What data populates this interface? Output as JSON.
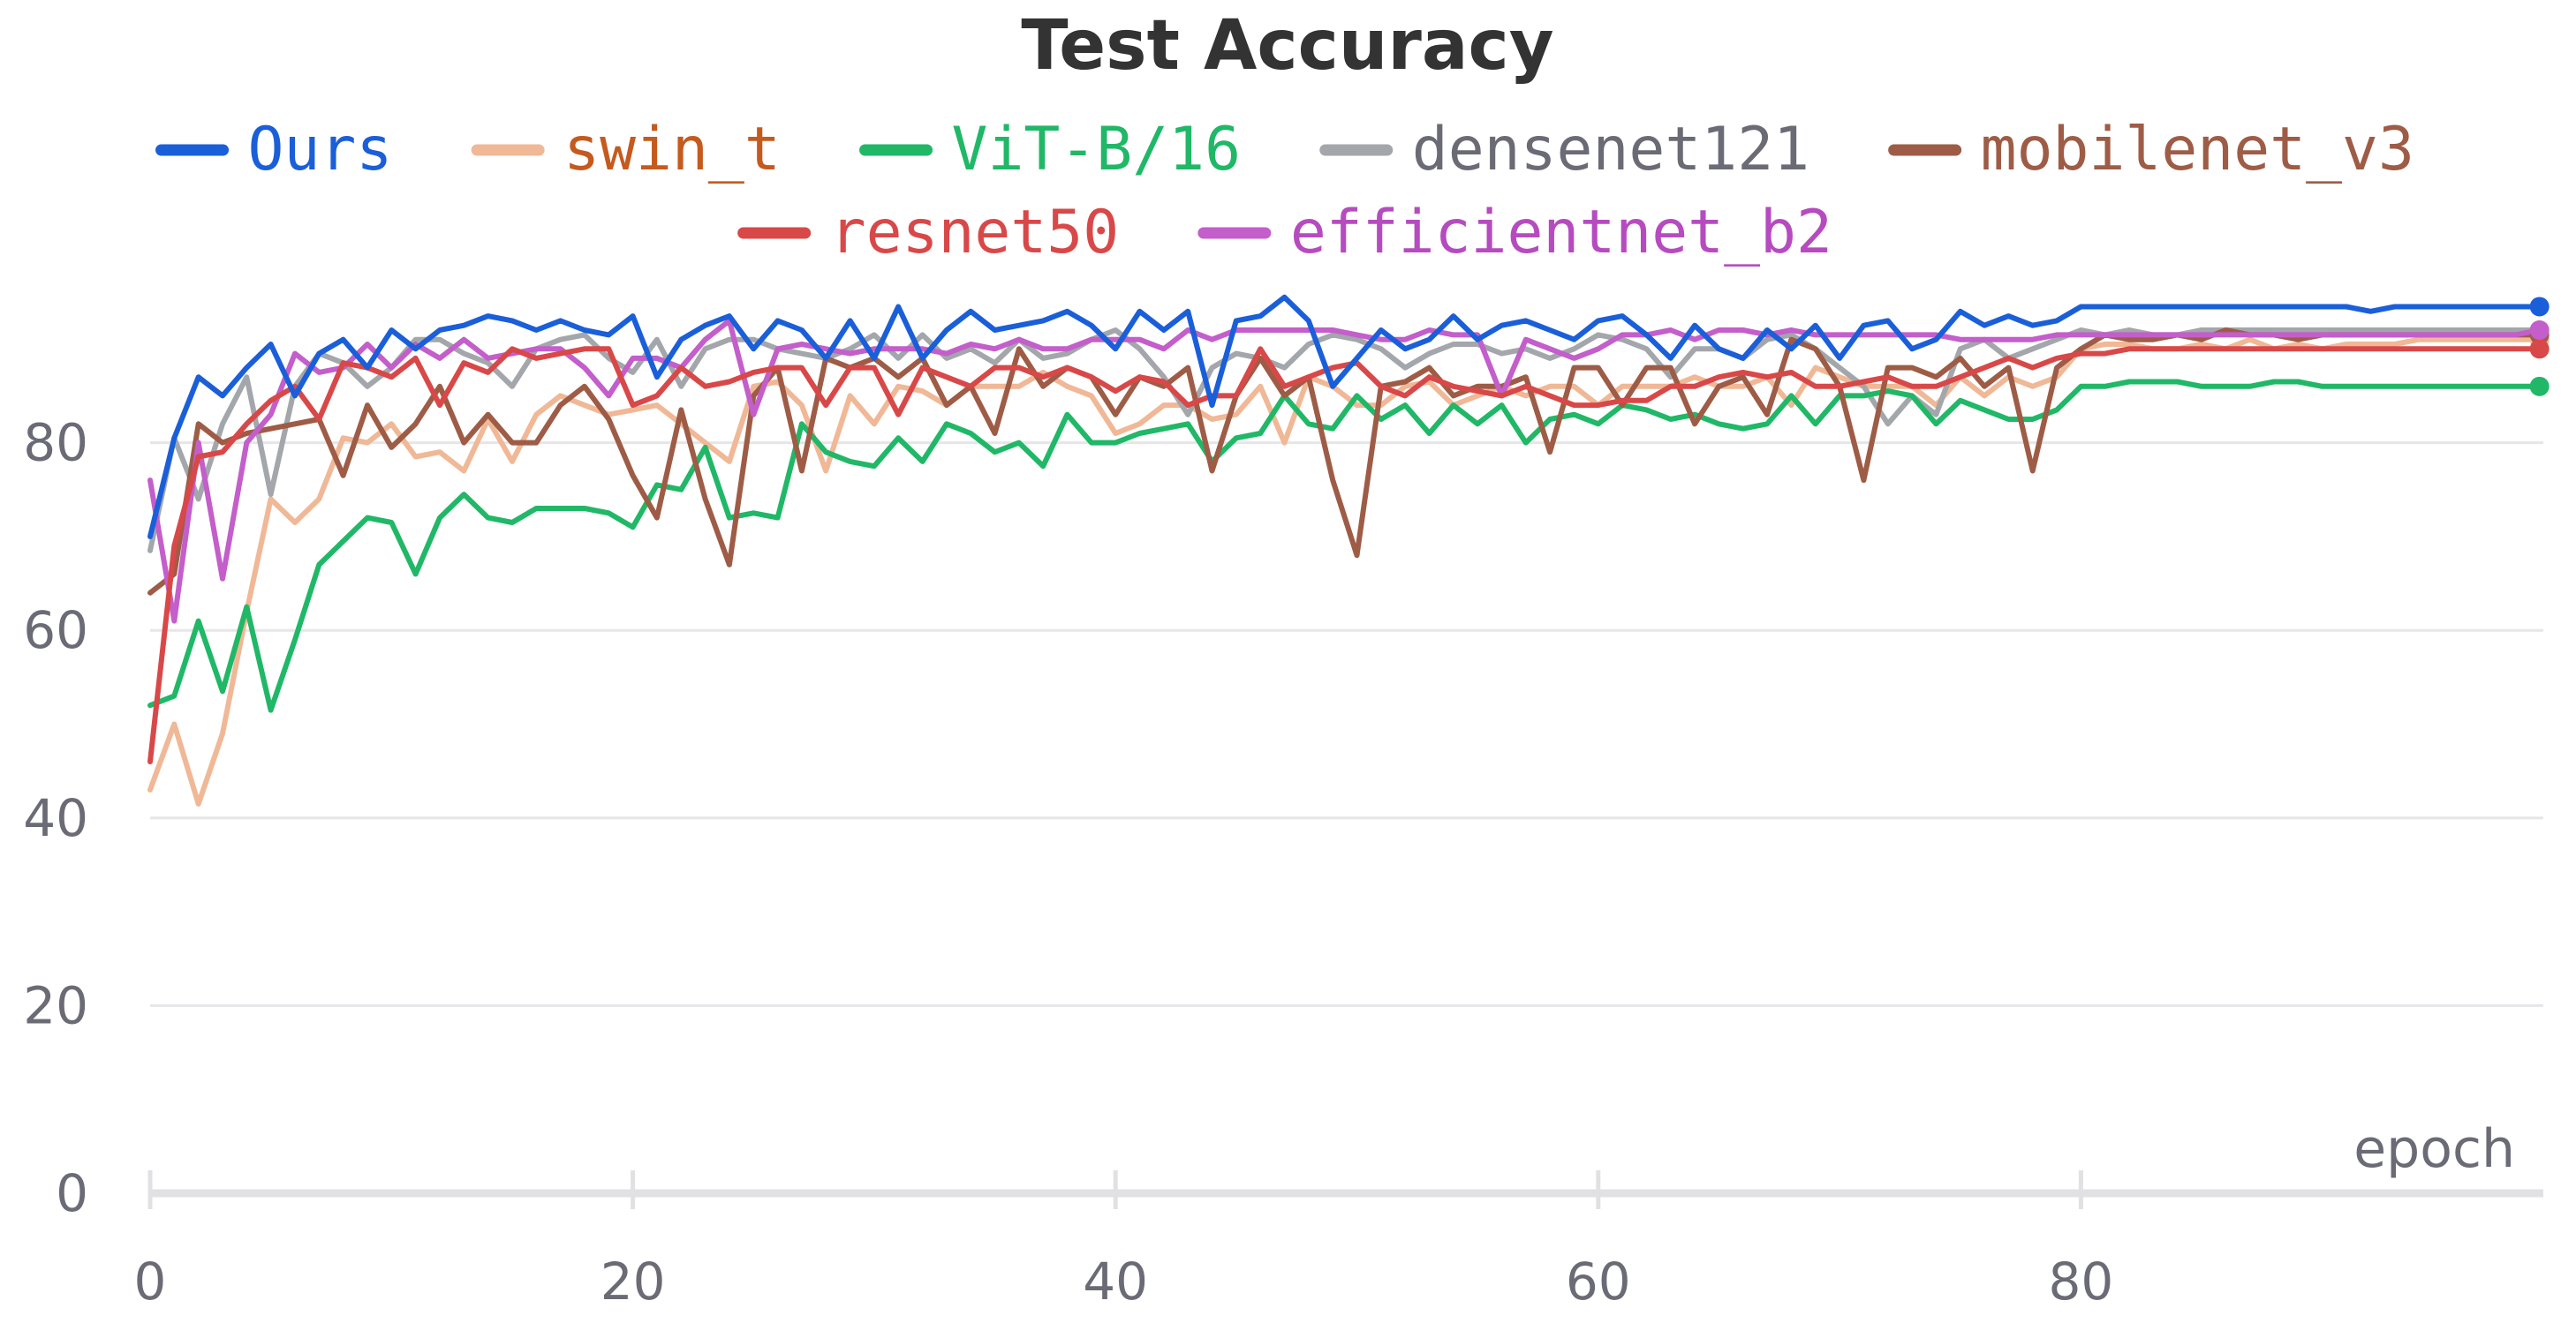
{
  "chart_data": {
    "type": "line",
    "title": "Test Accuracy",
    "xlabel": "epoch",
    "ylabel": "",
    "xlim": [
      0,
      99
    ],
    "ylim": [
      0,
      96
    ],
    "xticks": [
      0,
      20,
      40,
      60,
      80
    ],
    "yticks": [
      0,
      20,
      40,
      60,
      80
    ],
    "grid": "horizontal",
    "legend_position": "top",
    "series": [
      {
        "name": "Ours",
        "color": "#1a5fd9",
        "text_color": "#1a5fd9",
        "values": [
          70,
          80.5,
          87,
          85,
          88,
          90.5,
          85,
          89.5,
          91,
          88,
          92,
          90,
          92,
          92.5,
          93.5,
          93,
          92,
          93,
          92,
          91.5,
          93.5,
          87,
          91,
          92.5,
          93.5,
          90,
          93,
          92,
          89,
          93,
          89,
          94.5,
          89,
          92,
          94,
          92,
          92.5,
          93,
          94,
          92.5,
          90,
          94,
          92,
          94,
          84,
          93,
          93.5,
          95.5,
          93,
          86,
          89,
          92,
          90,
          91,
          93.5,
          91,
          92.5,
          93,
          92,
          91,
          93,
          93.5,
          91.5,
          89,
          92.5,
          90,
          89,
          92,
          90,
          92.5,
          89,
          92.5,
          93,
          90,
          91,
          94,
          92.5,
          93.5,
          92.5,
          93,
          94.5,
          94.5,
          94.5,
          94.5,
          94.5,
          94.5,
          94.5,
          94.5,
          94.5,
          94.5,
          94.5,
          94.5,
          94,
          94.5,
          94.5,
          94.5,
          94.5,
          94.5,
          94.5,
          94.5
        ]
      },
      {
        "name": "swin_t",
        "color": "#f0b896",
        "text_color": "#c55a1e",
        "values": [
          43,
          50,
          41.5,
          49,
          62,
          74,
          71.5,
          74,
          80.5,
          80,
          82,
          78.5,
          79,
          77,
          82.5,
          78,
          83,
          85,
          84,
          83,
          83.5,
          84,
          82,
          80,
          78,
          86,
          86.5,
          84,
          77,
          85,
          82,
          86,
          85.5,
          84,
          86,
          86,
          86,
          87.5,
          86,
          85,
          81,
          82,
          84,
          84,
          82.5,
          83,
          86,
          80,
          87,
          86,
          84,
          84,
          86,
          86.5,
          84,
          85,
          86,
          85,
          86,
          86,
          84,
          86,
          86,
          86,
          87,
          86,
          86,
          87,
          84,
          88,
          87,
          86,
          86,
          86,
          84,
          87,
          85,
          87,
          86,
          87,
          90,
          90.5,
          90.5,
          90,
          90,
          90.5,
          90,
          91,
          90,
          90.5,
          90,
          90.5,
          90.5,
          90.5,
          91,
          91,
          91,
          91,
          91,
          91
        ]
      },
      {
        "name": "ViT-B/16",
        "color": "#20b867",
        "text_color": "#20b867",
        "values": [
          52,
          53,
          61,
          53.5,
          62.5,
          51.5,
          59,
          67,
          69.5,
          72,
          71.5,
          66,
          72,
          74.5,
          72,
          71.5,
          73,
          73,
          73,
          72.5,
          71,
          75.5,
          75,
          79.5,
          72,
          72.5,
          72,
          82,
          79,
          78,
          77.5,
          80.5,
          78,
          82,
          81,
          79,
          80,
          77.5,
          83,
          80,
          80,
          81,
          81.5,
          82,
          78,
          80.5,
          81,
          85,
          82,
          81.5,
          85,
          82.5,
          84,
          81,
          84,
          82,
          84,
          80,
          82.5,
          83,
          82,
          84,
          83.5,
          82.5,
          83,
          82,
          81.5,
          82,
          85,
          82,
          85,
          85,
          85.5,
          85,
          82,
          84.5,
          83.5,
          82.5,
          82.5,
          83.5,
          86,
          86,
          86.5,
          86.5,
          86.5,
          86,
          86,
          86,
          86.5,
          86.5,
          86,
          86,
          86,
          86,
          86,
          86,
          86,
          86,
          86,
          86
        ]
      },
      {
        "name": "densenet121",
        "color": "#a3a7ab",
        "text_color": "#6b6b76",
        "values": [
          68.5,
          80.5,
          74,
          82,
          87,
          74.5,
          86,
          89.5,
          88.5,
          86,
          88,
          91,
          91,
          89.5,
          88.5,
          86,
          90,
          91,
          91.5,
          89,
          87.5,
          91,
          86,
          90,
          91,
          91,
          90,
          89.5,
          89,
          90,
          91.5,
          89,
          91.5,
          89,
          90,
          88.5,
          91,
          89,
          89.5,
          91,
          92,
          90,
          87,
          83,
          88,
          89.5,
          89,
          88,
          90.5,
          91.5,
          91,
          90,
          88,
          89.5,
          90.5,
          90.5,
          89.5,
          90,
          89,
          90,
          91.5,
          91,
          90,
          87,
          90,
          90,
          89,
          91,
          91.5,
          90,
          88,
          86,
          82,
          85,
          83,
          90,
          91,
          89,
          90,
          91,
          92,
          91.5,
          92,
          91.5,
          91.5,
          92,
          92,
          92,
          92,
          92,
          92,
          92,
          92,
          92,
          92,
          92,
          92,
          92,
          92,
          92
        ]
      },
      {
        "name": "mobilenet_v3",
        "color": "#9e5c46",
        "text_color": "#9e5c46",
        "values": [
          64,
          66,
          82,
          80,
          81,
          81.5,
          82,
          82.5,
          76.5,
          84,
          79.5,
          82,
          86,
          80,
          83,
          80,
          80,
          84,
          86,
          82.5,
          76.5,
          72,
          83.5,
          74,
          67,
          85,
          88,
          77,
          89,
          88,
          89,
          87,
          89,
          84,
          86,
          81,
          90,
          86,
          88,
          87,
          83,
          87,
          86,
          88,
          77,
          85,
          89,
          85,
          87,
          76,
          68,
          86,
          86.5,
          88,
          85,
          86,
          86,
          87,
          79,
          88,
          88,
          84,
          88,
          88,
          82,
          86,
          87,
          83,
          91,
          90,
          86,
          76,
          88,
          88,
          87,
          89,
          86,
          88,
          77,
          88,
          90,
          91.5,
          91,
          91,
          91.5,
          91,
          92,
          91.5,
          91.5,
          91,
          91.5,
          91.5,
          91.5,
          91.5,
          91.5,
          91.5,
          91.5,
          91.5,
          91.5,
          91.5
        ]
      },
      {
        "name": "resnet50",
        "color": "#d94848",
        "text_color": "#d94848",
        "values": [
          46,
          69,
          78.5,
          79,
          82,
          84.5,
          86,
          82.5,
          88.5,
          88,
          87,
          89,
          84,
          88.5,
          87.5,
          90,
          89,
          89.5,
          90,
          90,
          84,
          85,
          88,
          86,
          86.5,
          87.5,
          88,
          88,
          84,
          88,
          88,
          83,
          88,
          87,
          86,
          88,
          88,
          87,
          88,
          87,
          85.5,
          87,
          86.5,
          84,
          85,
          85,
          90,
          86,
          87,
          88,
          88.5,
          86,
          85,
          87,
          86,
          85.5,
          85,
          86,
          85,
          84,
          84,
          84.5,
          84.5,
          86,
          86,
          87,
          87.5,
          87,
          87.5,
          86,
          86,
          86.5,
          87,
          86,
          86,
          87,
          88,
          89,
          88,
          89,
          89.5,
          89.5,
          90,
          90,
          90,
          90,
          90,
          90,
          90,
          90,
          90,
          90,
          90,
          90,
          90,
          90,
          90,
          90,
          90,
          90
        ]
      },
      {
        "name": "efficientnet_b2",
        "color": "#c35ecb",
        "text_color": "#b64bc0",
        "values": [
          76,
          61,
          80,
          65.5,
          80,
          83,
          89.5,
          87.5,
          88,
          90.5,
          88,
          90.5,
          89,
          91,
          89,
          89.5,
          90,
          90,
          88,
          85,
          89,
          89,
          88,
          91,
          93,
          83,
          90,
          90.5,
          90,
          89.5,
          90,
          90,
          90,
          89.5,
          90.5,
          90,
          91,
          90,
          90,
          91,
          91,
          91,
          90,
          92,
          91,
          92,
          92,
          92,
          92,
          92,
          91.5,
          91,
          91,
          92,
          91.5,
          91.5,
          85,
          91,
          90,
          89,
          90,
          91.5,
          91.5,
          92,
          91,
          92,
          92,
          91.5,
          92,
          91.5,
          91.5,
          91.5,
          91.5,
          91.5,
          91.5,
          91,
          91,
          91,
          91,
          91.5,
          91.5,
          91.5,
          91.5,
          91.5,
          91.5,
          91.5,
          91.5,
          91.5,
          91.5,
          91.5,
          91.5,
          91.5,
          91.5,
          91.5,
          91.5,
          91.5,
          91.5,
          91.5,
          91.5,
          92
        ]
      }
    ]
  }
}
